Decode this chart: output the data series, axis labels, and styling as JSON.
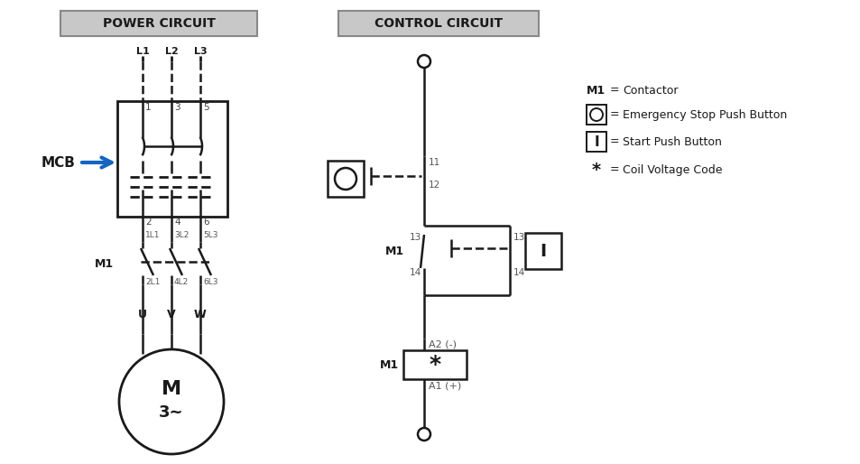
{
  "title_power": "POWER CIRCUIT",
  "title_control": "CONTROL CIRCUIT",
  "bg_color": "#ffffff",
  "lc": "#1a1a1a",
  "tc": "#1a1a1a",
  "arrow_color": "#1565c0",
  "legend_M1": "Contactor",
  "legend_O": "Emergency Stop Push Button",
  "legend_I": "Start Push Button",
  "legend_star": "Coil Voltage Code"
}
